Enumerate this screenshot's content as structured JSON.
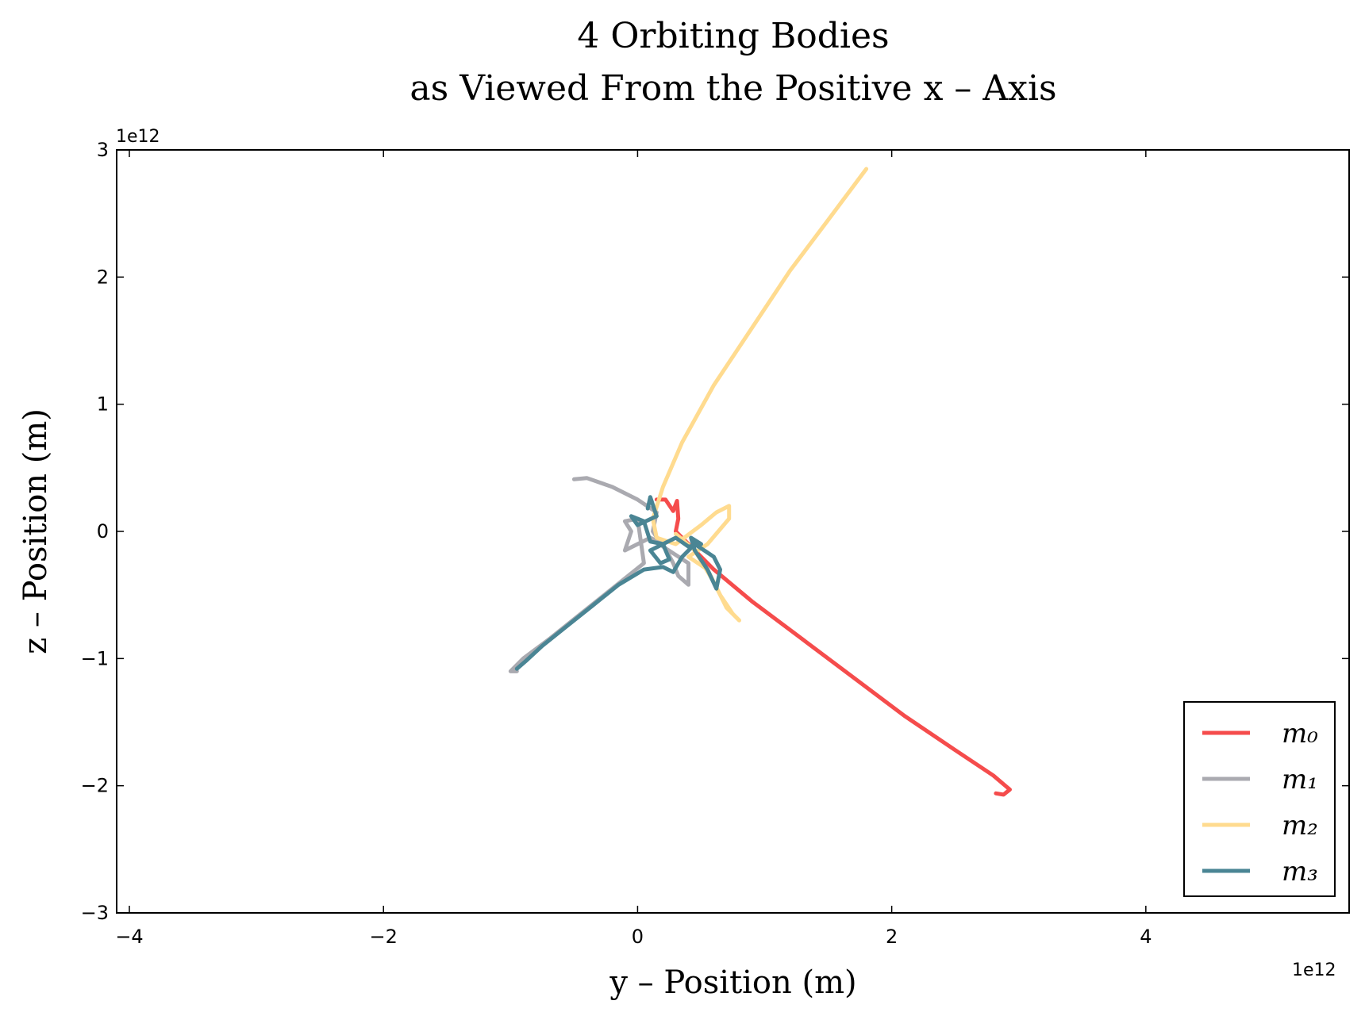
{
  "chart_data": {
    "type": "line",
    "title": "4 Orbiting Bodies",
    "subtitle": "as Viewed From the Positive x – Axis",
    "xlabel": "y – Position (m)",
    "ylabel": "z – Position (m)",
    "x_scale_label": "1e12",
    "y_scale_label": "1e12",
    "xlim": [
      -4.1,
      5.6
    ],
    "ylim": [
      -3,
      3
    ],
    "x_ticks": [
      -4,
      -2,
      0,
      2,
      4
    ],
    "y_ticks": [
      -3,
      -2,
      -1,
      0,
      1,
      2,
      3
    ],
    "x_tick_labels": [
      "−4",
      "−2",
      "0",
      "2",
      "4"
    ],
    "y_tick_labels": [
      "−3",
      "−2",
      "−1",
      "0",
      "1",
      "2",
      "3"
    ],
    "grid": false,
    "legend_position": "lower-right",
    "series": [
      {
        "name": "m₀",
        "color": "#f54c4c",
        "points": [
          [
            0.15,
            0.25
          ],
          [
            0.22,
            0.25
          ],
          [
            0.28,
            0.16
          ],
          [
            0.31,
            0.24
          ],
          [
            0.32,
            0.1
          ],
          [
            0.3,
            0.0
          ],
          [
            0.4,
            -0.1
          ],
          [
            0.6,
            -0.3
          ],
          [
            0.9,
            -0.55
          ],
          [
            1.3,
            -0.85
          ],
          [
            1.7,
            -1.15
          ],
          [
            2.1,
            -1.45
          ],
          [
            2.5,
            -1.72
          ],
          [
            2.8,
            -1.92
          ],
          [
            2.93,
            -2.03
          ],
          [
            2.88,
            -2.07
          ],
          [
            2.82,
            -2.06
          ]
        ]
      },
      {
        "name": "m₁",
        "color": "#aaaab0",
        "points": [
          [
            -0.5,
            0.41
          ],
          [
            -0.4,
            0.42
          ],
          [
            -0.2,
            0.35
          ],
          [
            0.0,
            0.25
          ],
          [
            0.15,
            0.15
          ],
          [
            0.12,
            0.0
          ],
          [
            0.2,
            -0.12
          ],
          [
            0.4,
            -0.25
          ],
          [
            0.4,
            -0.42
          ],
          [
            0.32,
            -0.35
          ],
          [
            0.28,
            -0.25
          ],
          [
            0.2,
            -0.1
          ],
          [
            0.1,
            -0.05
          ],
          [
            0.0,
            -0.1
          ],
          [
            -0.1,
            -0.15
          ],
          [
            -0.05,
            0.0
          ],
          [
            -0.1,
            0.08
          ],
          [
            0.0,
            0.1
          ],
          [
            0.05,
            -0.25
          ],
          [
            -0.2,
            -0.45
          ],
          [
            -0.45,
            -0.65
          ],
          [
            -0.7,
            -0.85
          ],
          [
            -0.9,
            -1.0
          ],
          [
            -1.0,
            -1.1
          ],
          [
            -0.95,
            -1.1
          ]
        ]
      },
      {
        "name": "m₂",
        "color": "#ffdb8f",
        "points": [
          [
            1.8,
            2.85
          ],
          [
            1.5,
            2.45
          ],
          [
            1.2,
            2.05
          ],
          [
            0.9,
            1.6
          ],
          [
            0.6,
            1.15
          ],
          [
            0.35,
            0.7
          ],
          [
            0.2,
            0.35
          ],
          [
            0.12,
            0.1
          ],
          [
            0.15,
            -0.05
          ],
          [
            0.3,
            -0.1
          ],
          [
            0.5,
            0.05
          ],
          [
            0.62,
            0.15
          ],
          [
            0.72,
            0.2
          ],
          [
            0.72,
            0.1
          ],
          [
            0.55,
            -0.1
          ],
          [
            0.4,
            -0.2
          ],
          [
            0.55,
            -0.3
          ],
          [
            0.65,
            -0.5
          ],
          [
            0.75,
            -0.65
          ],
          [
            0.8,
            -0.7
          ],
          [
            0.7,
            -0.6
          ],
          [
            0.6,
            -0.4
          ],
          [
            0.45,
            -0.15
          ],
          [
            0.3,
            -0.02
          ]
        ]
      },
      {
        "name": "m₃",
        "color": "#4a8594",
        "points": [
          [
            0.08,
            0.18
          ],
          [
            0.1,
            0.27
          ],
          [
            0.15,
            0.12
          ],
          [
            0.0,
            0.05
          ],
          [
            -0.05,
            0.12
          ],
          [
            0.05,
            0.08
          ],
          [
            0.1,
            -0.08
          ],
          [
            0.2,
            -0.1
          ],
          [
            0.25,
            -0.22
          ],
          [
            0.18,
            -0.25
          ],
          [
            0.1,
            -0.15
          ],
          [
            0.2,
            -0.1
          ],
          [
            0.3,
            -0.05
          ],
          [
            0.4,
            -0.12
          ],
          [
            0.5,
            -0.1
          ],
          [
            0.42,
            -0.05
          ],
          [
            0.45,
            -0.15
          ],
          [
            0.55,
            -0.3
          ],
          [
            0.62,
            -0.45
          ],
          [
            0.65,
            -0.3
          ],
          [
            0.6,
            -0.2
          ],
          [
            0.45,
            -0.1
          ],
          [
            0.35,
            -0.2
          ],
          [
            0.28,
            -0.32
          ],
          [
            0.2,
            -0.28
          ],
          [
            0.05,
            -0.3
          ],
          [
            -0.15,
            -0.42
          ],
          [
            -0.35,
            -0.58
          ],
          [
            -0.55,
            -0.74
          ],
          [
            -0.75,
            -0.9
          ],
          [
            -0.88,
            -1.02
          ],
          [
            -0.95,
            -1.08
          ]
        ]
      }
    ]
  }
}
